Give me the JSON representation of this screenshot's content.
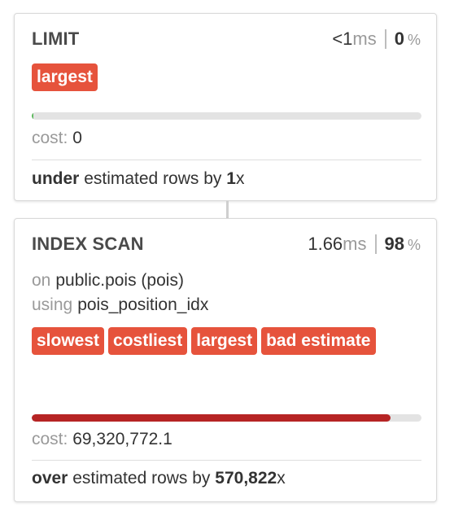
{
  "nodes": [
    {
      "title": "LIMIT",
      "duration_value": "<1",
      "duration_unit": "ms",
      "percent_value": "0",
      "percent_unit": "%",
      "tags": [
        "largest"
      ],
      "cost_label": "cost:",
      "cost_value": "0",
      "cost_fraction": 0.004,
      "bar_color": "#5cb85c",
      "estimate_direction": "under",
      "estimate_text": "estimated rows by",
      "estimate_factor": "1",
      "estimate_suffix": "x"
    },
    {
      "title": "INDEX SCAN",
      "duration_value": "1.66",
      "duration_unit": "ms",
      "percent_value": "98",
      "percent_unit": "%",
      "on_label": "on",
      "on_value": "public.pois (pois)",
      "using_label": "using",
      "using_value": "pois_position_idx",
      "tags": [
        "slowest",
        "costliest",
        "largest",
        "bad estimate"
      ],
      "cost_label": "cost:",
      "cost_value": "69,320,772.1",
      "cost_fraction": 0.92,
      "bar_color": "#b62424",
      "estimate_direction": "over",
      "estimate_text": "estimated rows by",
      "estimate_factor": "570,822",
      "estimate_suffix": "x"
    }
  ],
  "colors": {
    "tag_background": "#e6533c",
    "tag_text": "#ffffff",
    "muted_text": "#9a9a9a"
  }
}
